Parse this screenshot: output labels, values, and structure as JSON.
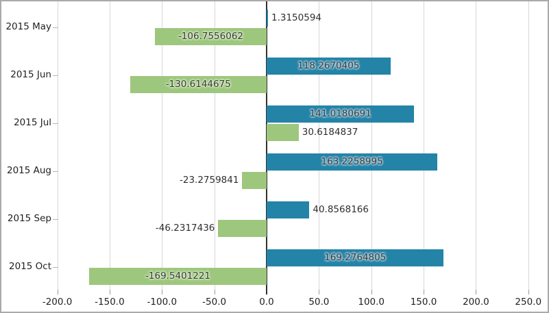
{
  "chart_data": {
    "type": "bar",
    "orientation": "horizontal",
    "title": "",
    "xlabel": "",
    "ylabel": "",
    "legend": "none",
    "grid": true,
    "xlim": [
      -200.0,
      250.0
    ],
    "categories": [
      "2015 May",
      "2015 Jun",
      "2015 Jul",
      "2015 Aug",
      "2015 Sep",
      "2015 Oct"
    ],
    "series": [
      {
        "name": "series-1-blue",
        "color": "#2484a8",
        "values": [
          1.3150594,
          118.2670405,
          141.0180691,
          163.2258995,
          40.8568166,
          169.2764805
        ],
        "labels": [
          "1.3150594",
          "118.2670405",
          "141.0180691",
          "163.2258995",
          "40.8568166",
          "169.2764805"
        ]
      },
      {
        "name": "series-2-green",
        "color": "#9ec77e",
        "values": [
          -106.7556062,
          -130.6144675,
          30.6184837,
          -23.2759841,
          -46.2317436,
          -169.5401221
        ],
        "labels": [
          "-106.7556062",
          "-130.6144675",
          "30.6184837",
          "-23.2759841",
          "-46.2317436",
          "-169.5401221"
        ]
      }
    ],
    "x_ticks": [
      -200.0,
      -150.0,
      -100.0,
      -50.0,
      0.0,
      50.0,
      100.0,
      150.0,
      200.0,
      250.0
    ],
    "x_tick_labels": [
      "-200.0",
      "-150.0",
      "-100.0",
      "-50.0",
      "0.0",
      "50.0",
      "100.0",
      "150.0",
      "200.0",
      "250.0"
    ]
  },
  "colors": {
    "series1": "#2484a8",
    "series2": "#9ec77e",
    "series1_halo": "#a6cbdb",
    "series2_halo": "#d5e8c3",
    "gridline": "#d6d6d6",
    "zero_line": "#303030",
    "tick": "#9b9b9b",
    "axis_text": "#1f1f1f",
    "value_text": "#3c3c3c",
    "border": "#a9a9a9",
    "background": "#ffffff"
  }
}
